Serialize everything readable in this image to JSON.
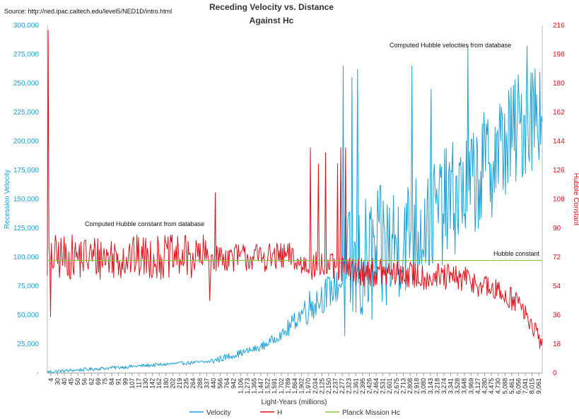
{
  "chart_data": {
    "type": "line",
    "title": "Receding Velocity vs. Distance",
    "subtitle": "Against Hc",
    "source": "Source: http://ned.ipac.caltech.edu/level5/NED1D/intro.html",
    "xlabel": "Light-Years (millions)",
    "ylabel_left": "Recession Velocity",
    "ylabel_right": "Hubble Constant",
    "ylim_left": [
      0,
      300000
    ],
    "ylim_right": [
      0,
      216
    ],
    "yticks_left": [
      "-",
      "25,000",
      "50,000",
      "75,000",
      "100,000",
      "125,000",
      "150,000",
      "175,000",
      "200,000",
      "225,000",
      "250,000",
      "275,000",
      "300,000"
    ],
    "yticks_right": [
      "0",
      "18",
      "36",
      "54",
      "72",
      "90",
      "108",
      "126",
      "144",
      "162",
      "180",
      "198",
      "216"
    ],
    "x_categories": [
      "4",
      "30",
      "40",
      "45",
      "50",
      "56",
      "62",
      "69",
      "75",
      "84",
      "91",
      "99",
      "107",
      "117",
      "130",
      "142",
      "162",
      "180",
      "202",
      "219",
      "235",
      "264",
      "288",
      "337",
      "440",
      "566",
      "764",
      "942",
      "1,106",
      "1,273",
      "1,365",
      "1,447",
      "1,522",
      "1,591",
      "1,702",
      "1,789",
      "1,864",
      "1,902",
      "1,970",
      "2,034",
      "2,125",
      "2,150",
      "2,237",
      "2,277",
      "2,323",
      "2,361",
      "2,395",
      "2,426",
      "2,464",
      "2,531",
      "2,601",
      "2,675",
      "2,713",
      "2,808",
      "2,918",
      "3,080",
      "3,143",
      "3,218",
      "3,274",
      "3,341",
      "3,528",
      "3,648",
      "3,969",
      "4,127",
      "4,280",
      "4,475",
      "4,730",
      "5,088",
      "5,461",
      "6,056",
      "7,041",
      "8,015",
      "9,061"
    ],
    "annotations": [
      "Computed Hubble velocities from database",
      "Computed Hubble constant from database",
      "Hubble constant"
    ],
    "grid": false,
    "legend_position": "bottom",
    "series": [
      {
        "name": "Velocity",
        "axis": "left",
        "color": "#1ca0d6",
        "segments": [
          {
            "x_range": [
              0,
              0.33
            ],
            "start": 1000,
            "end": 10000,
            "noise": 1500
          },
          {
            "x_range": [
              0.33,
              0.43
            ],
            "start": 10000,
            "end": 22000,
            "noise": 3000
          },
          {
            "x_range": [
              0.43,
              0.48
            ],
            "start": 22000,
            "end": 35000,
            "noise": 4000
          },
          {
            "x_range": [
              0.48,
              0.52
            ],
            "start": 35000,
            "end": 55000,
            "noise": 8000
          },
          {
            "x_range": [
              0.52,
              0.6
            ],
            "start": 55000,
            "end": 80000,
            "noise": 15000
          },
          {
            "x_range": [
              0.6,
              0.7
            ],
            "start": 80000,
            "end": 110000,
            "noise": 60000
          },
          {
            "x_range": [
              0.7,
              0.85
            ],
            "start": 110000,
            "end": 160000,
            "noise": 50000
          },
          {
            "x_range": [
              0.85,
              1.0
            ],
            "start": 160000,
            "end": 235000,
            "noise": 50000
          }
        ],
        "peaks": [
          {
            "x": 0.597,
            "v": 265000
          },
          {
            "x": 0.616,
            "v": 255000
          },
          {
            "x": 0.627,
            "v": 262000
          },
          {
            "x": 0.736,
            "v": 265000
          },
          {
            "x": 0.776,
            "v": 245000
          },
          {
            "x": 0.85,
            "v": 282000
          },
          {
            "x": 0.97,
            "v": 282000
          }
        ]
      },
      {
        "name": "H",
        "axis": "right",
        "color": "#e0101a",
        "segments": [
          {
            "x_range": [
              0,
              0.33
            ],
            "start": 72,
            "end": 72,
            "noise": 14
          },
          {
            "x_range": [
              0.33,
              0.5
            ],
            "start": 72,
            "end": 72,
            "noise": 9
          },
          {
            "x_range": [
              0.5,
              0.6
            ],
            "start": 68,
            "end": 65,
            "noise": 9
          },
          {
            "x_range": [
              0.6,
              0.85
            ],
            "start": 64,
            "end": 58,
            "noise": 9
          },
          {
            "x_range": [
              0.85,
              0.95
            ],
            "start": 58,
            "end": 45,
            "noise": 8
          },
          {
            "x_range": [
              0.95,
              1.0
            ],
            "start": 45,
            "end": 18,
            "noise": 6
          }
        ],
        "peaks": [
          {
            "x": 0.002,
            "v": 213
          },
          {
            "x": 0.006,
            "v": 35
          },
          {
            "x": 0.34,
            "v": 112
          },
          {
            "x": 0.328,
            "v": 45
          },
          {
            "x": 0.532,
            "v": 140
          },
          {
            "x": 0.548,
            "v": 130
          },
          {
            "x": 0.562,
            "v": 137
          },
          {
            "x": 0.586,
            "v": 130
          },
          {
            "x": 0.593,
            "v": 140
          },
          {
            "x": 0.602,
            "v": 140
          }
        ]
      },
      {
        "name": "Planck Mission Hc",
        "axis": "right",
        "color": "#8fbf3a",
        "constant": 70
      }
    ]
  },
  "legend": [
    {
      "label": "Velocity",
      "color": "#1ca0d6"
    },
    {
      "label": "H",
      "color": "#e0101a"
    },
    {
      "label": "Planck Mission Hc",
      "color": "#8fbf3a"
    }
  ]
}
